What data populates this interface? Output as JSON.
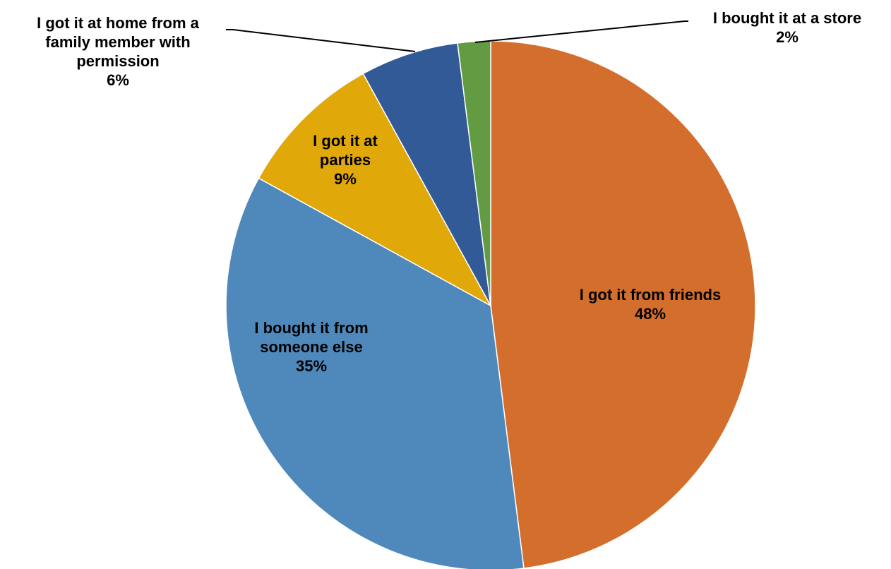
{
  "chart_data": {
    "type": "pie",
    "title": "",
    "start_angle_deg": 0,
    "direction": "clockwise",
    "slices": [
      {
        "label_lines": [
          "I got it from friends"
        ],
        "percent_text": "48%",
        "value": 48,
        "color": "#D36E2C"
      },
      {
        "label_lines": [
          "I bought it from",
          "someone else"
        ],
        "percent_text": "35%",
        "value": 35,
        "color": "#4F89BB"
      },
      {
        "label_lines": [
          "I got it at",
          "parties"
        ],
        "percent_text": "9%",
        "value": 9,
        "color": "#E0A808"
      },
      {
        "label_lines": [
          "I got it at home from a",
          "family member with",
          "permission"
        ],
        "percent_text": "6%",
        "value": 6,
        "color": "#315A96"
      },
      {
        "label_lines": [
          "I bought it at a store"
        ],
        "percent_text": "2%",
        "value": 2,
        "color": "#629B42"
      }
    ]
  }
}
